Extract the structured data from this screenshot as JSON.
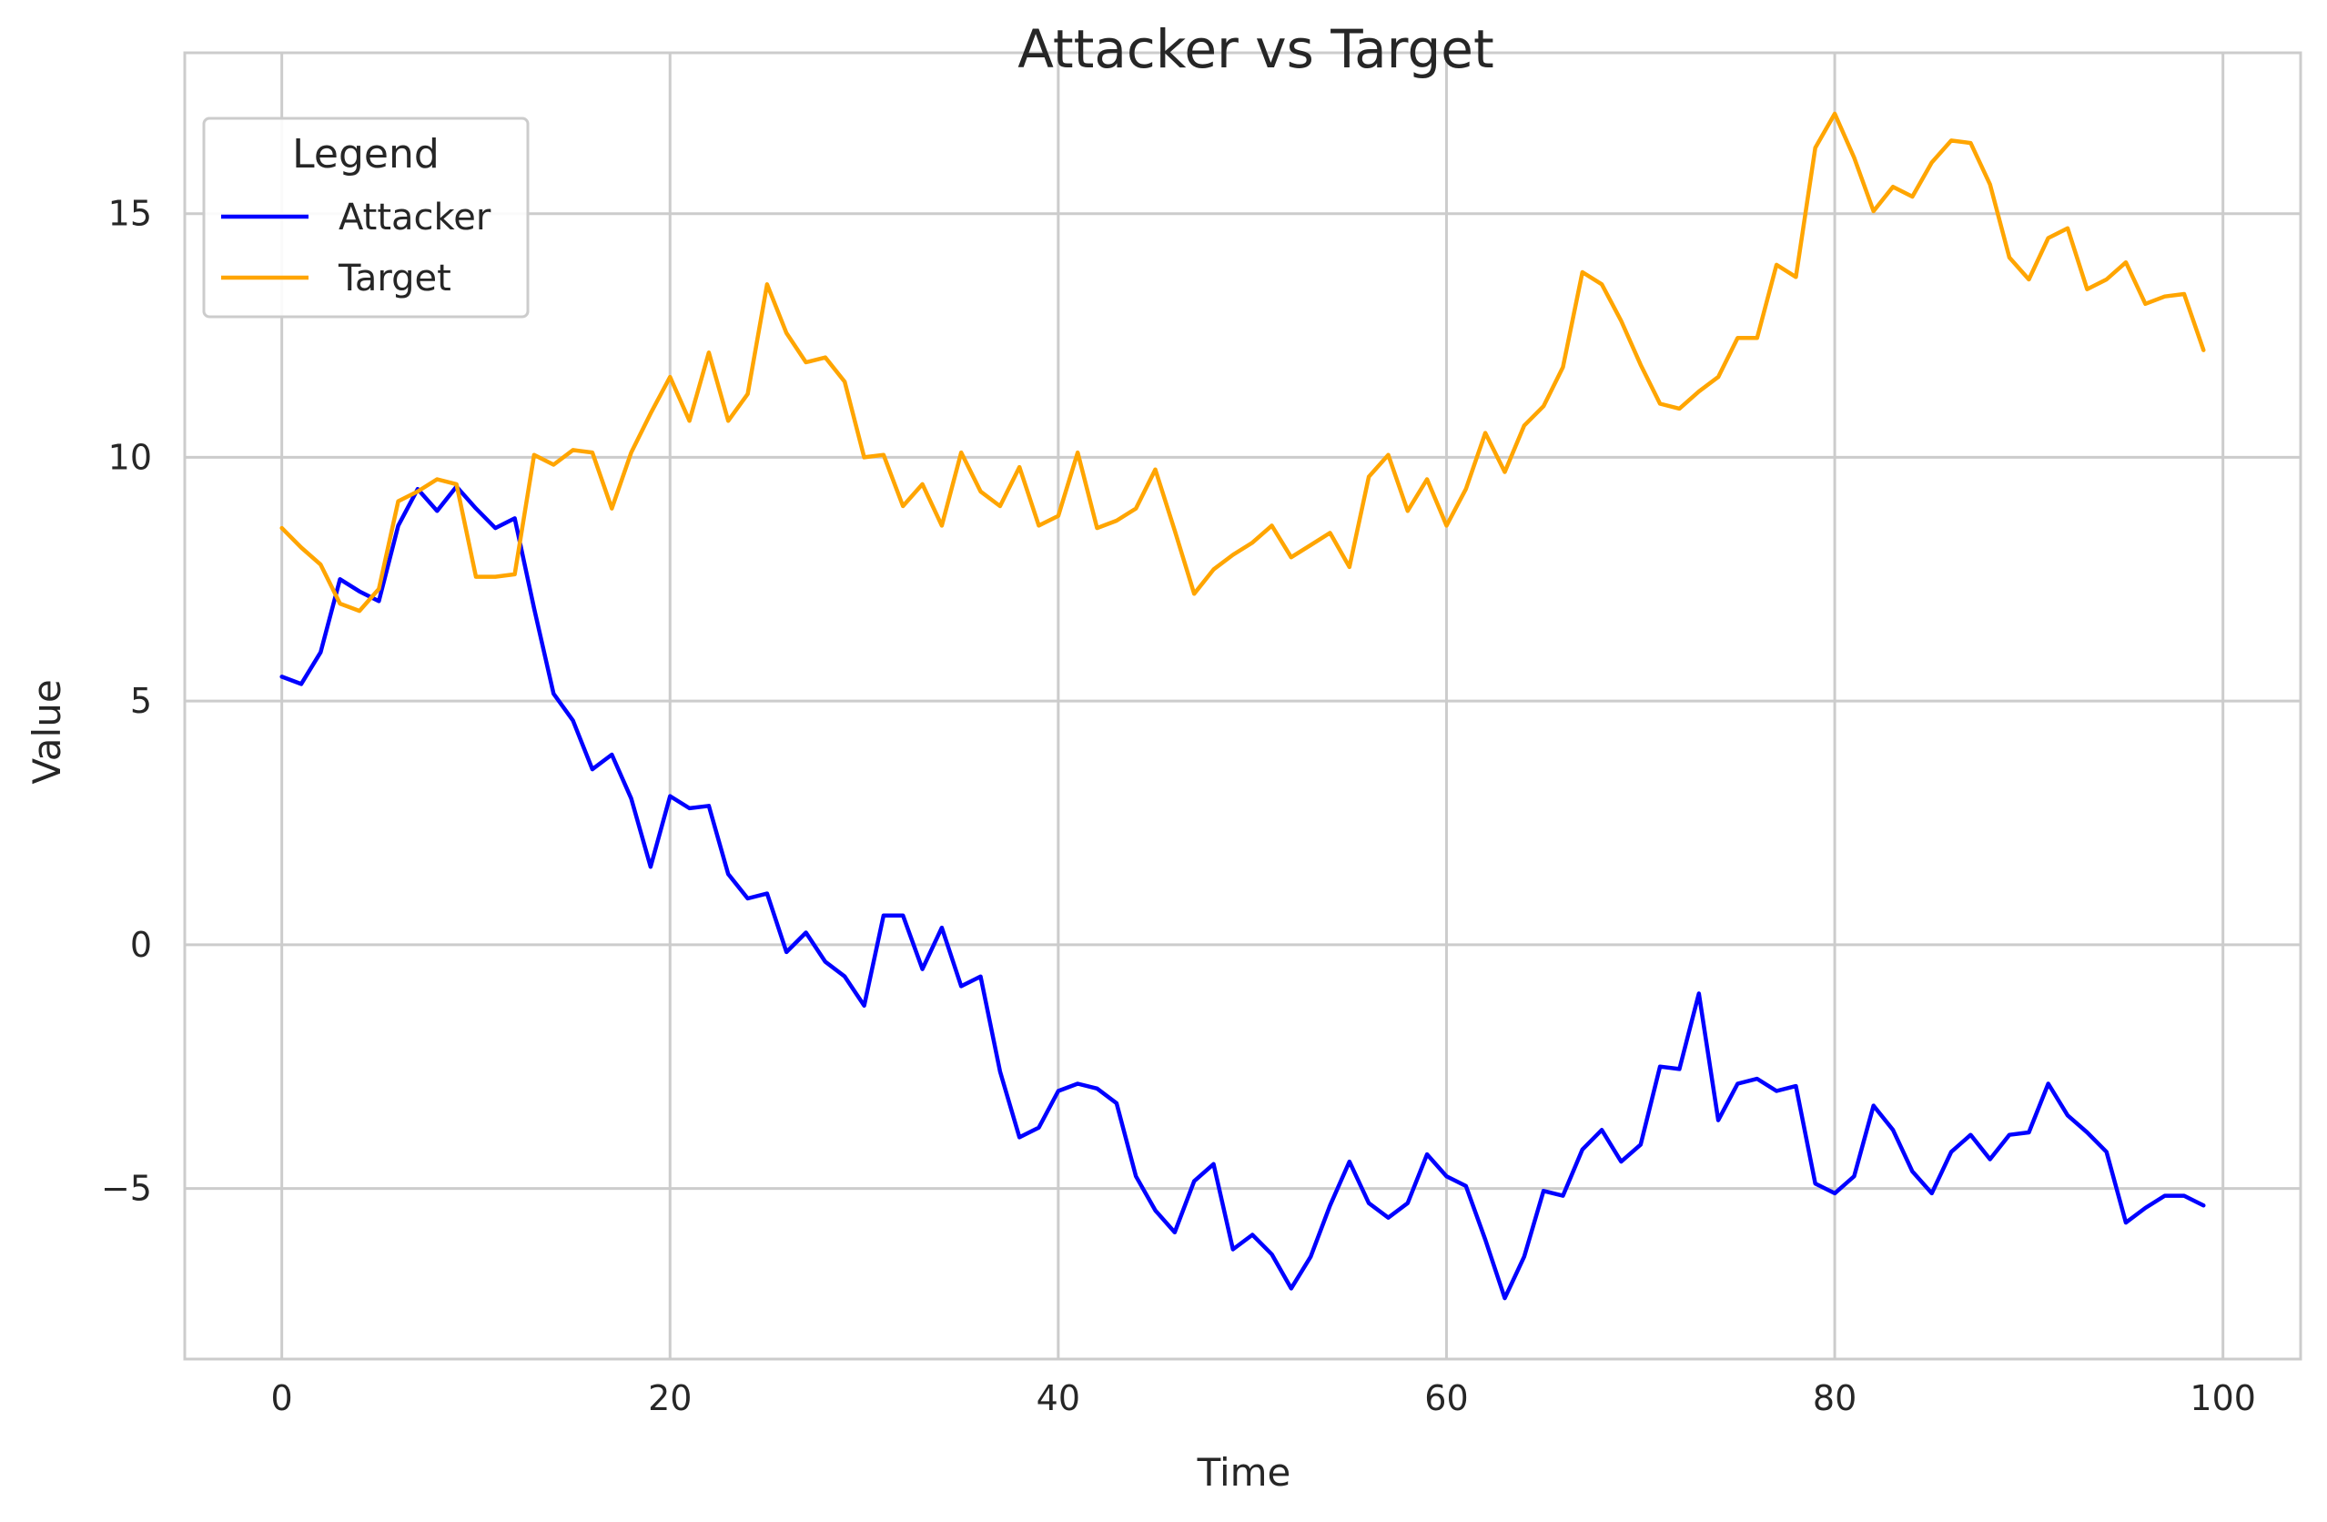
{
  "chart_data": {
    "type": "line",
    "title": "Attacker vs Target",
    "xlabel": "Time",
    "ylabel": "Value",
    "xlim": [
      -5,
      104
    ],
    "ylim": [
      -8.5,
      18.3
    ],
    "xticks": [
      0,
      20,
      40,
      60,
      80,
      100
    ],
    "yticks": [
      -5,
      0,
      5,
      10,
      15
    ],
    "ytick_labels": [
      "−5",
      "0",
      "5",
      "10",
      "15"
    ],
    "grid": true,
    "legend": {
      "title": "Legend",
      "position": "upper-left"
    },
    "x": [
      0,
      1,
      2,
      3,
      4,
      5,
      6,
      7,
      8,
      9,
      10,
      11,
      12,
      13,
      14,
      15,
      16,
      17,
      18,
      19,
      20,
      21,
      22,
      23,
      24,
      25,
      26,
      27,
      28,
      29,
      30,
      31,
      32,
      33,
      34,
      35,
      36,
      37,
      38,
      39,
      40,
      41,
      42,
      43,
      44,
      45,
      46,
      47,
      48,
      49,
      50,
      51,
      52,
      53,
      54,
      55,
      56,
      57,
      58,
      59,
      60,
      61,
      62,
      63,
      64,
      65,
      66,
      67,
      68,
      69,
      70,
      71,
      72,
      73,
      74,
      75,
      76,
      77,
      78,
      79,
      80,
      81,
      82,
      83,
      84,
      85,
      86,
      87,
      88,
      89,
      90,
      91,
      92,
      93,
      94,
      95,
      96,
      97,
      98,
      99
    ],
    "series": [
      {
        "name": "Attacker",
        "color": "#0000ff",
        "values": [
          5.5,
          5.35,
          6.0,
          7.5,
          7.25,
          7.05,
          8.6,
          9.35,
          8.9,
          9.4,
          8.95,
          8.55,
          8.75,
          6.9,
          5.15,
          4.6,
          3.6,
          3.9,
          3.0,
          1.6,
          3.05,
          2.8,
          2.85,
          1.45,
          0.95,
          1.05,
          -0.15,
          0.25,
          -0.35,
          -0.65,
          -1.25,
          0.6,
          0.6,
          -0.5,
          0.35,
          -0.85,
          -0.65,
          -2.6,
          -3.95,
          -3.75,
          -3.0,
          -2.85,
          -2.95,
          -3.25,
          -4.75,
          -5.45,
          -5.9,
          -4.85,
          -4.5,
          -6.25,
          -5.95,
          -6.35,
          -7.05,
          -6.4,
          -5.35,
          -4.45,
          -5.3,
          -5.6,
          -5.3,
          -4.3,
          -4.75,
          -4.95,
          -6.05,
          -7.25,
          -6.4,
          -5.05,
          -5.15,
          -4.2,
          -3.8,
          -4.45,
          -4.1,
          -2.5,
          -2.55,
          -1.0,
          -3.6,
          -2.85,
          -2.75,
          -3.0,
          -2.9,
          -4.9,
          -5.1,
          -4.75,
          -3.3,
          -3.8,
          -4.65,
          -5.1,
          -4.25,
          -3.9,
          -4.4,
          -3.9,
          -3.85,
          -2.85,
          -3.5,
          -3.85,
          -4.25,
          -5.7,
          -5.4,
          -5.15,
          -5.15,
          -5.35
        ]
      },
      {
        "name": "Target",
        "color": "#ffa500",
        "values": [
          8.55,
          8.15,
          7.8,
          7.0,
          6.85,
          7.3,
          9.1,
          9.3,
          9.55,
          9.45,
          7.55,
          7.55,
          7.6,
          10.05,
          9.85,
          10.15,
          10.1,
          8.95,
          10.1,
          10.9,
          11.65,
          10.75,
          12.15,
          10.75,
          11.3,
          13.55,
          12.55,
          11.95,
          12.05,
          11.55,
          10.0,
          10.05,
          9.0,
          9.45,
          8.6,
          10.1,
          9.3,
          9.0,
          9.8,
          8.6,
          8.8,
          10.1,
          8.55,
          8.7,
          8.95,
          9.75,
          8.5,
          7.2,
          7.7,
          8.0,
          8.25,
          8.6,
          7.95,
          8.2,
          8.45,
          7.75,
          9.6,
          10.05,
          8.9,
          9.55,
          8.6,
          9.35,
          10.5,
          9.7,
          10.65,
          11.05,
          11.85,
          13.8,
          13.55,
          12.8,
          11.9,
          11.1,
          11.0,
          11.35,
          11.65,
          12.45,
          12.45,
          13.95,
          13.7,
          16.35,
          17.05,
          16.15,
          15.05,
          15.55,
          15.35,
          16.05,
          16.5,
          16.45,
          15.6,
          14.1,
          13.65,
          14.5,
          14.7,
          13.45,
          13.65,
          14.0,
          13.15,
          13.3,
          13.35,
          12.2
        ]
      }
    ]
  }
}
